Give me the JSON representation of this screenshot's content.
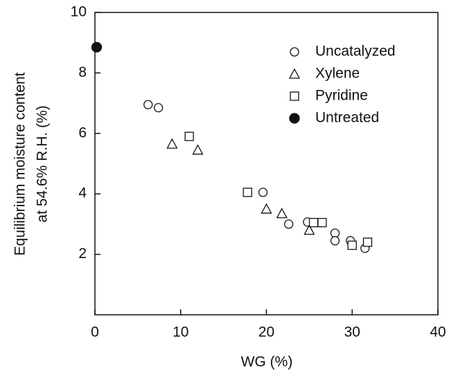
{
  "chart_data": {
    "type": "scatter",
    "xlabel": "WG (%)",
    "ylabel": [
      "Equilibrium moisture content",
      "at 54.6% R.H. (%)"
    ],
    "xlim": [
      0,
      40
    ],
    "xticks": [
      0,
      10,
      20,
      30,
      40
    ],
    "ylim": [
      0,
      10
    ],
    "yticks": [
      2,
      4,
      6,
      8,
      10
    ],
    "legend": "upper right",
    "series": [
      {
        "name": "Uncatalyzed",
        "marker": "circle",
        "color": "#111111",
        "x": [
          6.2,
          7.4,
          19.6,
          22.6,
          24.8,
          28,
          28,
          29.8,
          31.5
        ],
        "values": [
          6.95,
          6.85,
          4.05,
          3.0,
          3.07,
          2.7,
          2.45,
          2.45,
          2.2
        ]
      },
      {
        "name": "Xylene",
        "marker": "triangle",
        "color": "#111111",
        "x": [
          9,
          12,
          20,
          21.8,
          25
        ],
        "values": [
          5.65,
          5.45,
          3.5,
          3.35,
          2.8
        ]
      },
      {
        "name": "Pyridine",
        "marker": "square",
        "color": "#111111",
        "x": [
          11,
          17.8,
          25.5,
          26.5,
          30,
          31.8
        ],
        "values": [
          5.9,
          4.05,
          3.05,
          3.05,
          2.3,
          2.4
        ]
      },
      {
        "name": "Untreated",
        "marker": "filled-circle",
        "color": "#111111",
        "x": [
          0.2
        ],
        "values": [
          8.85
        ]
      }
    ]
  }
}
